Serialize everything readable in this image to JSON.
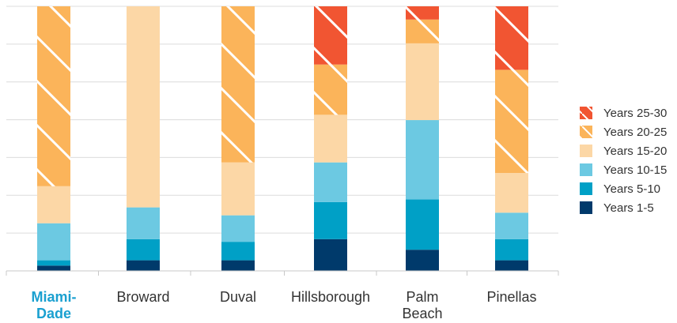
{
  "chart_data": {
    "type": "bar",
    "stacked": true,
    "normalized": true,
    "categories": [
      "Miami-Dade",
      "Broward",
      "Duval",
      "Hillsborough",
      "Palm Beach",
      "Pinellas"
    ],
    "category_lines": [
      [
        "Miami-",
        "Dade"
      ],
      [
        "Broward"
      ],
      [
        "Duval"
      ],
      [
        "Hillsborough"
      ],
      [
        "Palm",
        "Beach"
      ],
      [
        "Pinellas"
      ]
    ],
    "highlighted_category": "Miami-Dade",
    "ylim": [
      0,
      100
    ],
    "grid": true,
    "legend_position": "right",
    "series": [
      {
        "name": "Years 1-5",
        "color": "#003a6b",
        "hatched": false,
        "values": [
          2,
          4,
          4,
          12,
          8,
          4
        ]
      },
      {
        "name": "Years 5-10",
        "color": "#00a0c6",
        "hatched": false,
        "values": [
          2,
          8,
          7,
          14,
          19,
          8
        ]
      },
      {
        "name": "Years 10-15",
        "color": "#6cc9e2",
        "hatched": false,
        "values": [
          14,
          12,
          10,
          15,
          30,
          10
        ]
      },
      {
        "name": "Years 15-20",
        "color": "#fcd7a6",
        "hatched": false,
        "values": [
          14,
          76,
          20,
          18,
          29,
          15
        ]
      },
      {
        "name": "Years 20-25",
        "color": "#fbb45a",
        "hatched": true,
        "values": [
          68,
          0,
          59,
          19,
          9,
          39
        ]
      },
      {
        "name": "Years 25-30",
        "color": "#f15532",
        "hatched": true,
        "values": [
          0,
          0,
          0,
          22,
          5,
          24
        ]
      }
    ]
  }
}
